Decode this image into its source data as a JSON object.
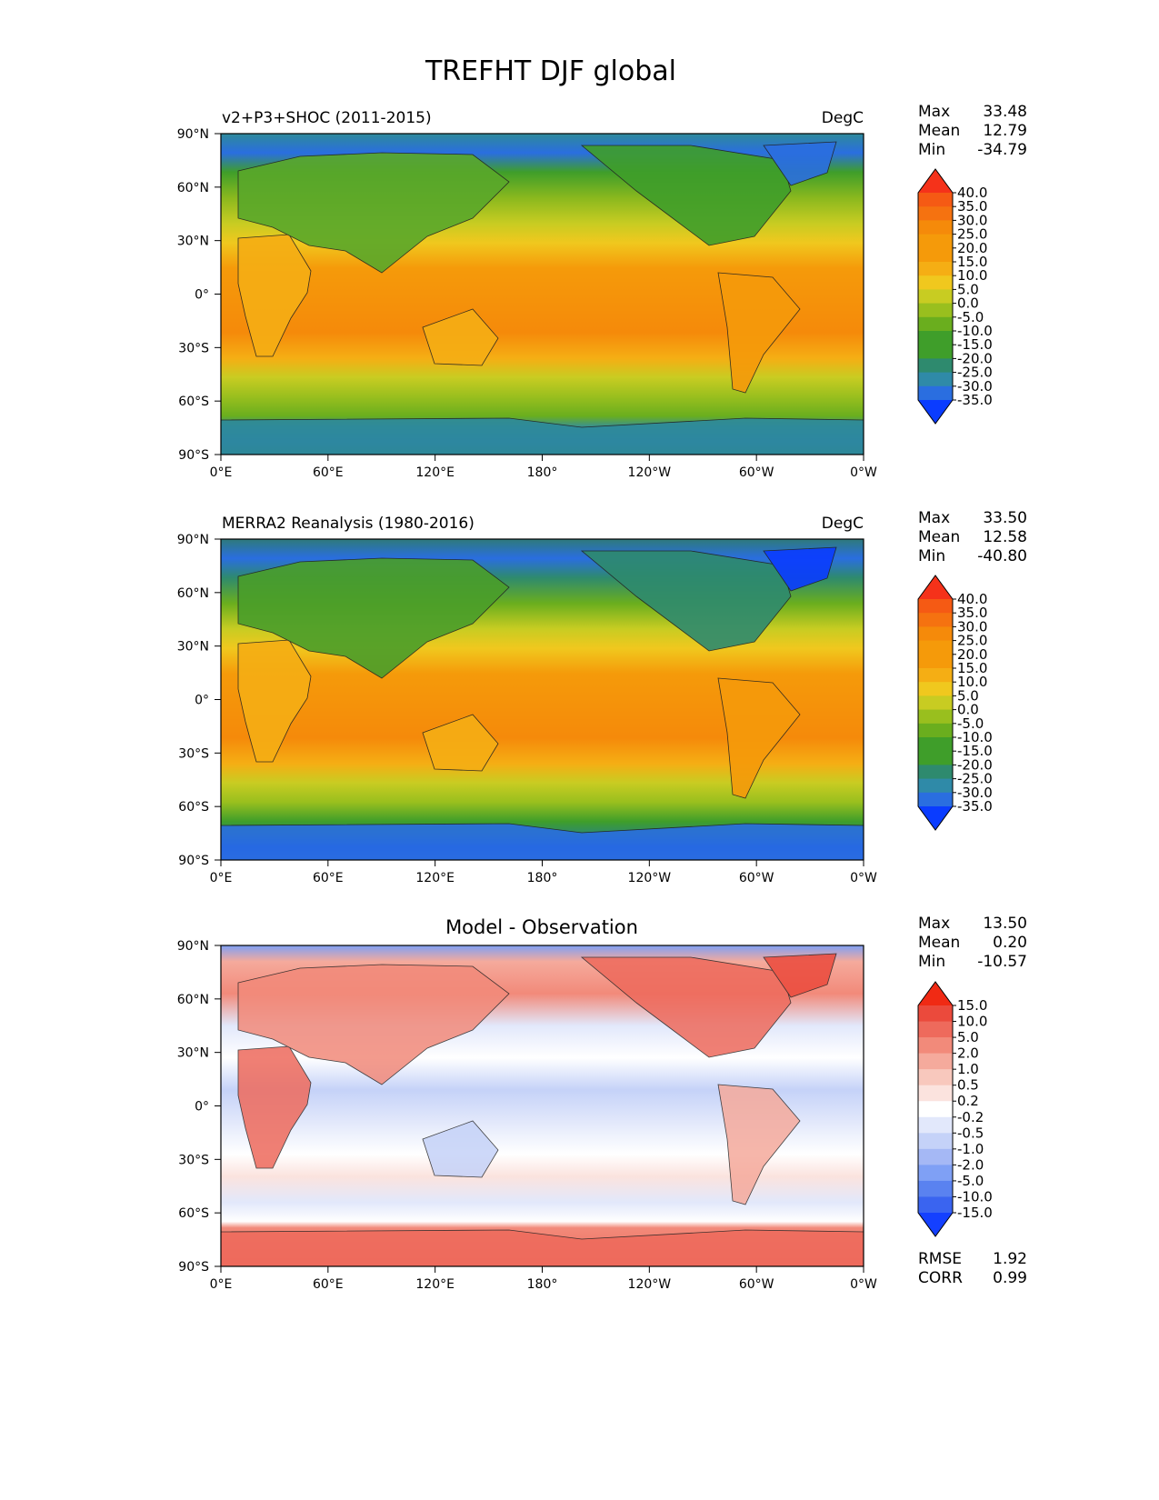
{
  "figure": {
    "title": "TREFHT DJF global"
  },
  "axes": {
    "lat_ticks": [
      "90°N",
      "60°N",
      "30°N",
      "0°",
      "30°S",
      "60°S",
      "90°S"
    ],
    "lon_ticks": [
      "0°E",
      "60°E",
      "120°E",
      "180°",
      "120°W",
      "60°W",
      "0°W"
    ]
  },
  "colors": {
    "test_palette": [
      "#0a3cff",
      "#2a6ee0",
      "#2f8aa8",
      "#2e8a6e",
      "#3f9e2a",
      "#6aae1e",
      "#99bf1e",
      "#c8cc22",
      "#f0c81e",
      "#f5ae14",
      "#f59a0a",
      "#f58a0a",
      "#f57210",
      "#f55a14",
      "#f5321a"
    ],
    "diff_palette": [
      "#1440ff",
      "#3a64f0",
      "#5a82f0",
      "#7fa0f5",
      "#a5b8f5",
      "#c5d2f8",
      "#e2e8fb",
      "#ffffff",
      "#fbe3de",
      "#f8c8bd",
      "#f5aa9c",
      "#f28a7a",
      "#ee6a5c",
      "#eb4a3c",
      "#f02a14"
    ]
  },
  "panels": [
    {
      "id": "test",
      "left_title": "v2+P3+SHOC (2011-2015)",
      "center_title": "",
      "right_title": "DegC",
      "stats": {
        "max_label": "Max",
        "max": "33.48",
        "mean_label": "Mean",
        "mean": "12.79",
        "min_label": "Min",
        "min": "-34.79"
      },
      "colorbar_levels": [
        "40.0",
        "35.0",
        "30.0",
        "25.0",
        "20.0",
        "15.0",
        "10.0",
        "5.0",
        "0.0",
        "-5.0",
        "-10.0",
        "-15.0",
        "-20.0",
        "-25.0",
        "-30.0",
        "-35.0"
      ]
    },
    {
      "id": "ref",
      "left_title": "MERRA2 Reanalysis (1980-2016)",
      "center_title": "",
      "right_title": "DegC",
      "stats": {
        "max_label": "Max",
        "max": "33.50",
        "mean_label": "Mean",
        "mean": "12.58",
        "min_label": "Min",
        "min": "-40.80"
      },
      "colorbar_levels": [
        "40.0",
        "35.0",
        "30.0",
        "25.0",
        "20.0",
        "15.0",
        "10.0",
        "5.0",
        "0.0",
        "-5.0",
        "-10.0",
        "-15.0",
        "-20.0",
        "-25.0",
        "-30.0",
        "-35.0"
      ]
    },
    {
      "id": "diff",
      "left_title": "",
      "center_title": "Model - Observation",
      "right_title": "",
      "stats": {
        "max_label": "Max",
        "max": "13.50",
        "mean_label": "Mean",
        "mean": "0.20",
        "min_label": "Min",
        "min": "-10.57"
      },
      "colorbar_levels": [
        "15.0",
        "10.0",
        "5.0",
        "2.0",
        "1.0",
        "0.5",
        "0.2",
        "-0.2",
        "-0.5",
        "-1.0",
        "-2.0",
        "-5.0",
        "-10.0",
        "-15.0"
      ],
      "extra": {
        "rmse_label": "RMSE",
        "rmse": "1.92",
        "corr_label": "CORR",
        "corr": "0.99"
      }
    }
  ],
  "chart_data": [
    {
      "type": "heatmap",
      "subtitle": "v2+P3+SHOC (2011-2015)",
      "units": "DegC",
      "x_range": [
        0,
        360
      ],
      "y_range": [
        -90,
        90
      ],
      "color_levels": [
        -35,
        -30,
        -25,
        -20,
        -15,
        -10,
        -5,
        0,
        5,
        10,
        15,
        20,
        25,
        30,
        35,
        40
      ],
      "max": 33.48,
      "mean": 12.79,
      "min": -34.79
    },
    {
      "type": "heatmap",
      "subtitle": "MERRA2 Reanalysis (1980-2016)",
      "units": "DegC",
      "x_range": [
        0,
        360
      ],
      "y_range": [
        -90,
        90
      ],
      "color_levels": [
        -35,
        -30,
        -25,
        -20,
        -15,
        -10,
        -5,
        0,
        5,
        10,
        15,
        20,
        25,
        30,
        35,
        40
      ],
      "max": 33.5,
      "mean": 12.58,
      "min": -40.8
    },
    {
      "type": "heatmap",
      "subtitle": "Model - Observation",
      "x_range": [
        0,
        360
      ],
      "y_range": [
        -90,
        90
      ],
      "color_levels": [
        -15,
        -10,
        -5,
        -2,
        -1,
        -0.5,
        -0.2,
        0.2,
        0.5,
        1,
        2,
        5,
        10,
        15
      ],
      "max": 13.5,
      "mean": 0.2,
      "min": -10.57,
      "rmse": 1.92,
      "corr": 0.99
    }
  ]
}
